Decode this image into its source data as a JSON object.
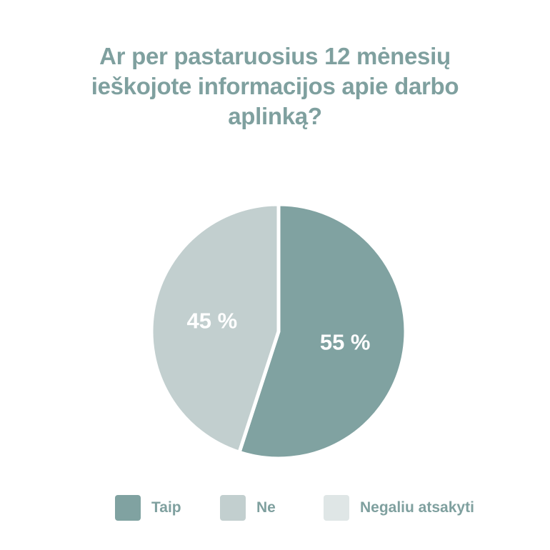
{
  "chart_data": {
    "type": "pie",
    "title_lines": [
      "Ar per pastaruosius 12 mėnesių",
      "ieškojote informacijos apie darbo",
      "aplinką?"
    ],
    "slices": [
      {
        "label": "Taip",
        "value": 55,
        "value_label": "55 %",
        "color": "#80a2a1"
      },
      {
        "label": "Ne",
        "value": 45,
        "value_label": "45 %",
        "color": "#c2cfcf"
      },
      {
        "label": "Negaliu atsakyti",
        "value": 0,
        "value_label": "",
        "color": "#dfe6e6"
      }
    ],
    "legend": {
      "placement": "bottom",
      "items": [
        {
          "label": "Taip",
          "color": "#80a2a1"
        },
        {
          "label": "Ne",
          "color": "#c2cfcf"
        },
        {
          "label": "Negaliu atsakyti",
          "color": "#dfe6e6"
        }
      ]
    }
  }
}
